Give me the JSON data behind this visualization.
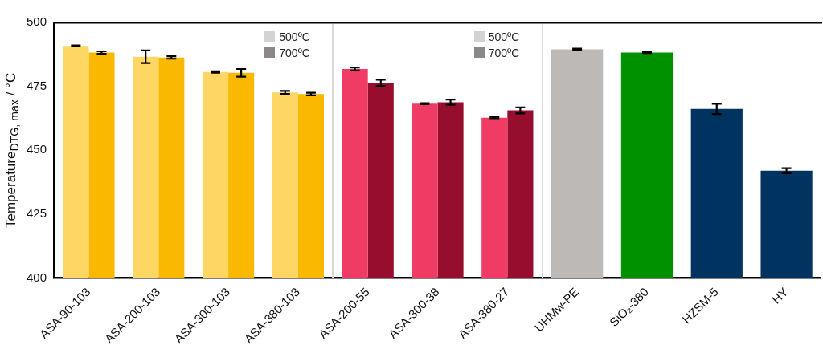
{
  "chart_data": {
    "type": "bar",
    "ylabel": "Temperature$_{DTG, max}$ / °C",
    "categories": [
      "ASA-90-103",
      "ASA-200-103",
      "ASA-300-103",
      "ASA-380-103",
      "ASA-200-55",
      "ASA-300-38",
      "ASA-380-27",
      "UHMw-PE",
      "SiO₂-380",
      "HZSM-5",
      "HY"
    ],
    "series": [
      {
        "name": "500ºC",
        "color": "#d3d3d3",
        "values": [
          490.8,
          486.6,
          480.6,
          472.6,
          481.8,
          468.2,
          462.7,
          489.5,
          488.2,
          466.2,
          442.0
        ],
        "errors": [
          0.2,
          2.5,
          0.3,
          0.6,
          0.6,
          0.2,
          0.2,
          0.3,
          0.2,
          2.0,
          1.0
        ],
        "colors": [
          "#fdd663",
          "#fdd663",
          "#fdd663",
          "#fdd663",
          "#f03c64",
          "#f03c64",
          "#f03c64",
          "#bdb9b6",
          "#009100",
          "#003360",
          "#003360"
        ]
      },
      {
        "name": "700ºC",
        "color": "#8c8888",
        "values": [
          488.2,
          486.3,
          480.3,
          472.0,
          476.4,
          468.8,
          465.6,
          null,
          null,
          null,
          null
        ],
        "errors": [
          0.5,
          0.5,
          1.5,
          0.5,
          1.2,
          1.0,
          1.2,
          null,
          null,
          null,
          null
        ],
        "colors": [
          "#fbb800",
          "#fbb800",
          "#fbb800",
          "#fbb800",
          "#960d2e",
          "#960d2e",
          "#960d2e",
          null,
          null,
          null,
          null
        ]
      }
    ],
    "ylim": [
      400,
      500
    ],
    "yticks": [
      400,
      425,
      450,
      475,
      500
    ],
    "grid": false,
    "legend": "top"
  }
}
